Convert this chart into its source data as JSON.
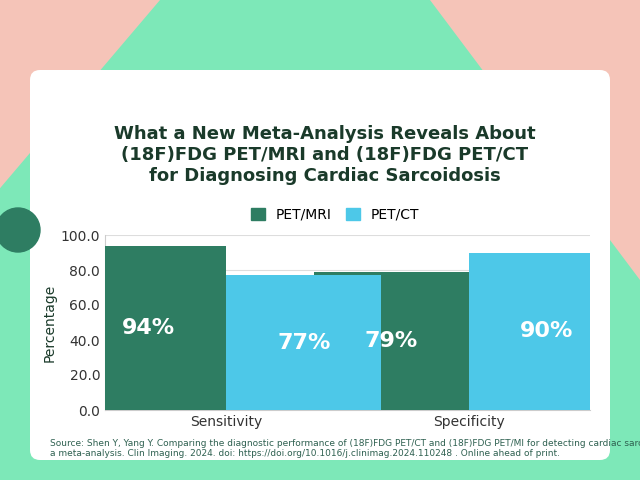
{
  "title_line1": "What a New Meta-Analysis Reveals About",
  "title_line2": "(18F)FDG PET/MRI and (18F)FDG PET/CT",
  "title_line3": "for Diagnosing Cardiac Sarcoidosis",
  "categories": [
    "Sensitivity",
    "Specificity"
  ],
  "petmri_values": [
    94,
    79
  ],
  "petct_values": [
    77,
    90
  ],
  "petmri_color": "#2e7d62",
  "petct_color": "#4dc8e8",
  "bar_label_color": "#ffffff",
  "ylabel": "Percentage",
  "ylim": [
    0,
    100
  ],
  "yticks": [
    0.0,
    20.0,
    40.0,
    60.0,
    80.0,
    100.0
  ],
  "background_outer": "#7de8b8",
  "background_inner": "#ffffff",
  "title_color": "#1a3a2a",
  "source_text": "Source: Shen Y, Yang Y. Comparing the diagnostic performance of (18F)FDG PET/CT and (18F)FDG PET/MI for detecting cardiac sarcoidosis;\na meta-analysis. Clin Imaging. 2024. doi: https://doi.org/10.1016/j.clinimag.2024.110248 . Online ahead of print.",
  "source_fontsize": 6.5,
  "legend_labels": [
    "PET/MRI",
    "PET/CT"
  ],
  "bar_width": 0.32,
  "title_fontsize": 13,
  "axis_tick_fontsize": 10,
  "bar_label_fontsize": 16,
  "salmon_color": "#f5c4b8",
  "circle_color": "#2e7d62"
}
